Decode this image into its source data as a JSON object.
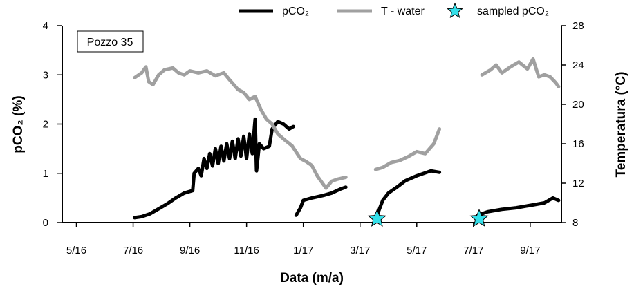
{
  "chart_data": {
    "type": "line",
    "annotation": "Pozzo 35",
    "xlabel": "Data (m/a)",
    "ylabel": "pCO₂ (%)",
    "y2label": "Temperatura (°C)",
    "xlim": [
      4.5,
      22.1
    ],
    "xticks": [
      {
        "value": 5,
        "label": "5/16"
      },
      {
        "value": 7,
        "label": "7/16"
      },
      {
        "value": 9,
        "label": "9/16"
      },
      {
        "value": 11,
        "label": "11/16"
      },
      {
        "value": 13,
        "label": "1/17"
      },
      {
        "value": 15,
        "label": "3/17"
      },
      {
        "value": 17,
        "label": "5/17"
      },
      {
        "value": 19,
        "label": "7/17"
      },
      {
        "value": 21,
        "label": "9/17"
      }
    ],
    "ylim": [
      0,
      4
    ],
    "yticks": [
      0,
      1,
      2,
      3,
      4
    ],
    "y2lim": [
      8,
      28
    ],
    "y2ticks": [
      8,
      12,
      16,
      20,
      24,
      28
    ],
    "legend": "top",
    "series": [
      {
        "name": "pCO₂",
        "type": "line",
        "color": "#000000",
        "x": [
          7.05,
          7.3,
          7.6,
          7.9,
          8.2,
          8.5,
          8.8,
          9.1,
          9.15,
          9.3,
          9.4,
          9.5,
          9.6,
          9.7,
          9.8,
          9.9,
          10.0,
          10.1,
          10.2,
          10.3,
          10.4,
          10.5,
          10.6,
          10.7,
          10.8,
          10.9,
          11.0,
          11.1,
          11.2,
          11.3,
          11.35,
          11.45,
          11.6,
          11.8,
          11.9,
          12.1,
          12.3,
          12.5,
          12.65,
          12.7,
          12.75,
          12.9,
          13.0,
          13.3,
          13.7,
          14.0,
          14.3,
          14.5,
          15.0,
          15.5,
          15.6,
          15.8,
          16.0,
          16.3,
          16.6,
          17.0,
          17.5,
          17.8,
          18.5,
          19.15,
          19.5,
          20.0,
          20.5,
          21.0,
          21.5,
          21.8,
          22.0
        ],
        "values": [
          0.1,
          0.12,
          0.18,
          0.28,
          0.38,
          0.5,
          0.6,
          0.65,
          1.0,
          1.1,
          0.95,
          1.3,
          1.1,
          1.4,
          1.15,
          1.5,
          1.2,
          1.55,
          1.25,
          1.6,
          1.3,
          1.65,
          1.3,
          1.7,
          1.35,
          1.75,
          1.3,
          1.8,
          1.4,
          2.1,
          1.05,
          1.6,
          1.5,
          1.55,
          1.9,
          2.05,
          2.0,
          1.9,
          1.95,
          null,
          0.15,
          0.3,
          0.45,
          0.5,
          0.55,
          0.6,
          0.68,
          0.72,
          null,
          0.02,
          0.15,
          0.45,
          0.6,
          0.72,
          0.85,
          0.95,
          1.05,
          1.02,
          null,
          0.15,
          0.22,
          0.27,
          0.3,
          0.35,
          0.4,
          0.5,
          0.45
        ]
      },
      {
        "name": "T - water",
        "type": "line",
        "axis": "y2",
        "color": "#a0a0a0",
        "x": [
          7.05,
          7.3,
          7.45,
          7.55,
          7.7,
          7.9,
          8.1,
          8.4,
          8.6,
          8.8,
          9.0,
          9.3,
          9.6,
          9.9,
          10.2,
          10.4,
          10.7,
          10.9,
          11.1,
          11.3,
          11.5,
          11.7,
          11.9,
          12.1,
          12.3,
          12.6,
          12.9,
          13.1,
          13.3,
          13.5,
          13.8,
          14.0,
          14.2,
          14.5,
          15.0,
          15.55,
          15.8,
          16.1,
          16.4,
          16.7,
          17.0,
          17.3,
          17.6,
          17.8,
          18.5,
          19.3,
          19.6,
          19.8,
          20.0,
          20.3,
          20.6,
          20.9,
          21.1,
          21.3,
          21.5,
          21.7,
          21.9,
          22.0
        ],
        "values": [
          22.7,
          23.2,
          23.8,
          22.3,
          22.0,
          23.0,
          23.5,
          23.7,
          23.2,
          23.0,
          23.4,
          23.2,
          23.4,
          22.9,
          23.2,
          22.5,
          21.5,
          21.2,
          20.5,
          20.8,
          19.5,
          18.5,
          18.0,
          17.0,
          16.5,
          15.8,
          14.5,
          14.2,
          13.8,
          12.7,
          11.5,
          12.2,
          12.4,
          12.6,
          null,
          13.4,
          13.6,
          14.1,
          14.3,
          14.7,
          15.2,
          15.0,
          16.0,
          17.5,
          null,
          23.0,
          23.5,
          24.0,
          23.2,
          23.8,
          24.3,
          23.6,
          24.6,
          22.8,
          23.0,
          22.8,
          22.2,
          21.8
        ]
      },
      {
        "name": "sampled pCO₂",
        "type": "scatter",
        "marker": "star",
        "color": "#33e0ea",
        "x": [
          15.6,
          19.2
        ],
        "values": [
          0.08,
          0.08
        ]
      }
    ]
  }
}
